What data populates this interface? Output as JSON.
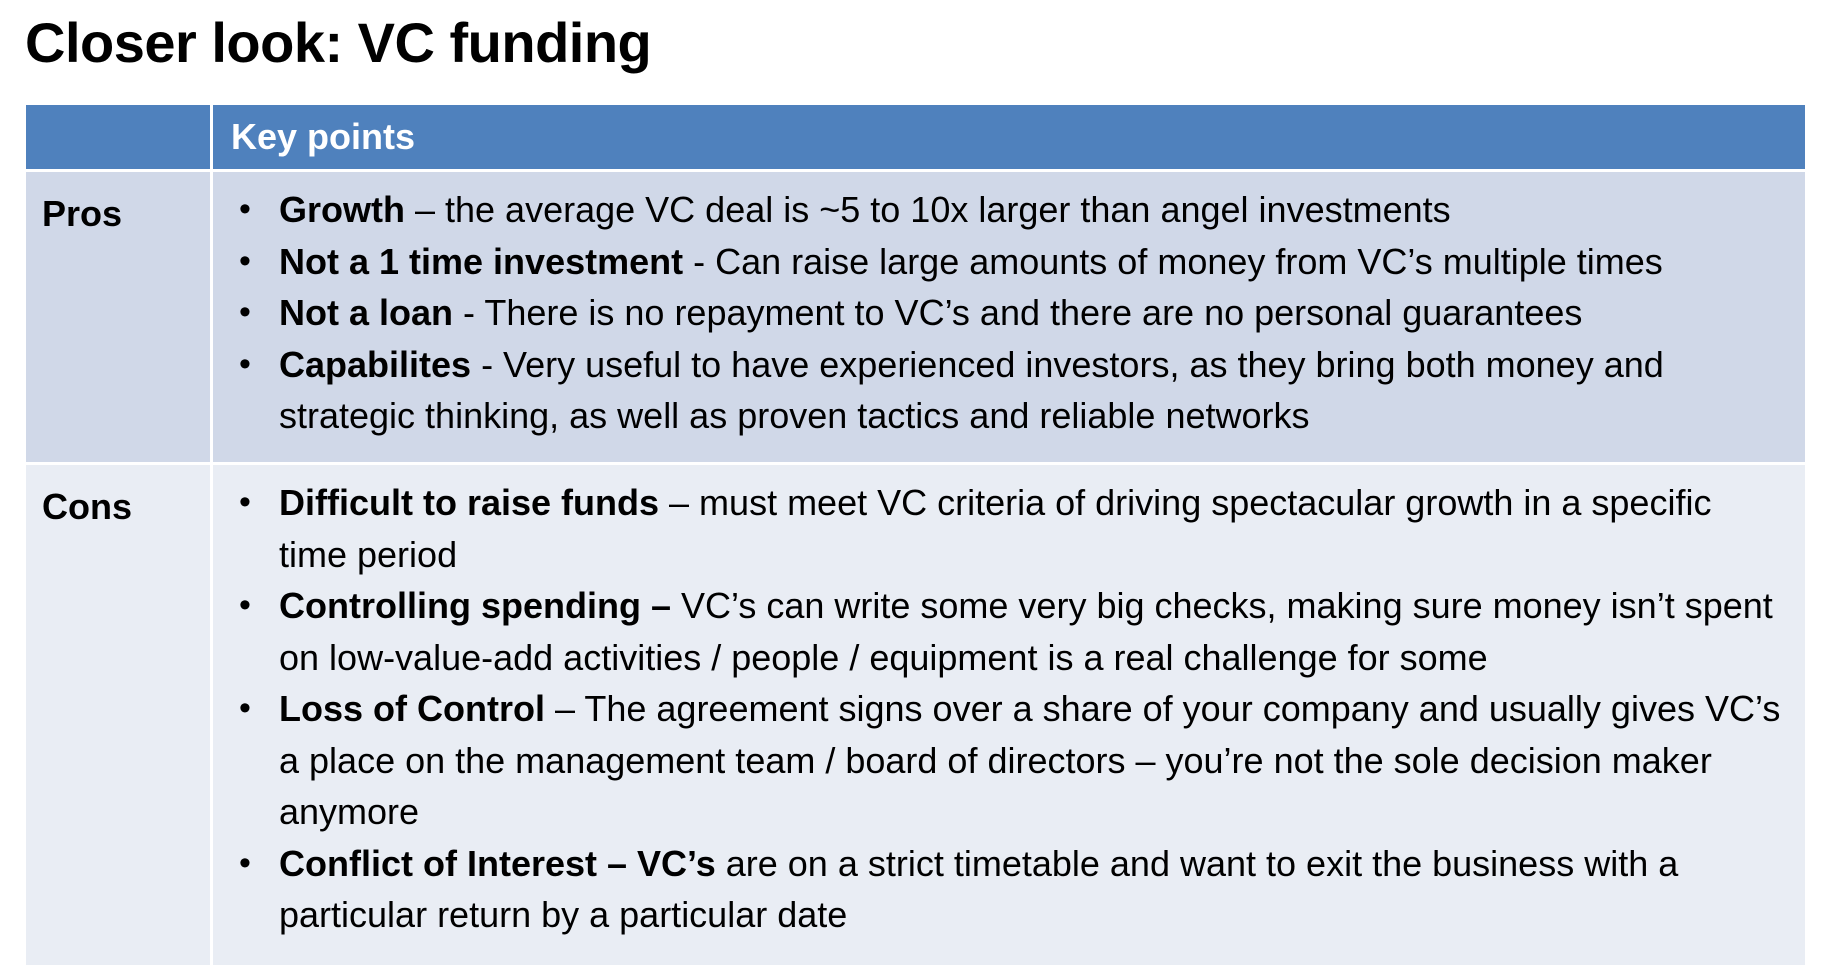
{
  "title": "Closer look: VC funding",
  "colors": {
    "header_fill": "#4f81bd",
    "pros_fill": "#d0d8e8",
    "cons_fill": "#e9edf4",
    "header_text": "#ffffff",
    "body_text": "#000000"
  },
  "table": {
    "corner_header": "",
    "points_header": "Key points",
    "bullet_glyph": "•",
    "pros": {
      "label": "Pros",
      "items": [
        {
          "lead": "Growth",
          "text": " – the average VC deal is ~5 to 10x larger than angel investments"
        },
        {
          "lead": "Not a 1 time investment",
          "text": " - Can raise large amounts of money from VC’s multiple times"
        },
        {
          "lead": "Not a loan",
          "text": " - There is no repayment to VC’s and there are no personal guarantees"
        },
        {
          "lead": "Capabilites",
          "text": "  - Very useful to have experienced investors, as they bring both money and strategic thinking, as well as proven tactics and reliable networks"
        }
      ]
    },
    "cons": {
      "label": "Cons",
      "items": [
        {
          "lead": "Difficult to raise funds",
          "text": " – must meet VC criteria of driving spectacular growth in a specific time period"
        },
        {
          "lead": "Controlling spending –",
          "text": " VC’s can write some very big checks, making sure money isn’t spent on low-value-add activities / people / equipment is a real challenge for some"
        },
        {
          "lead": "Loss of Control",
          "text": " – The agreement signs over a share of your company and usually gives VC’s a place on the management team / board of directors – you’re not the sole decision maker anymore"
        },
        {
          "lead": "Conflict of Interest – VC’s",
          "text": " are on a strict timetable and want to exit the business with a particular return by a particular date"
        }
      ]
    }
  }
}
